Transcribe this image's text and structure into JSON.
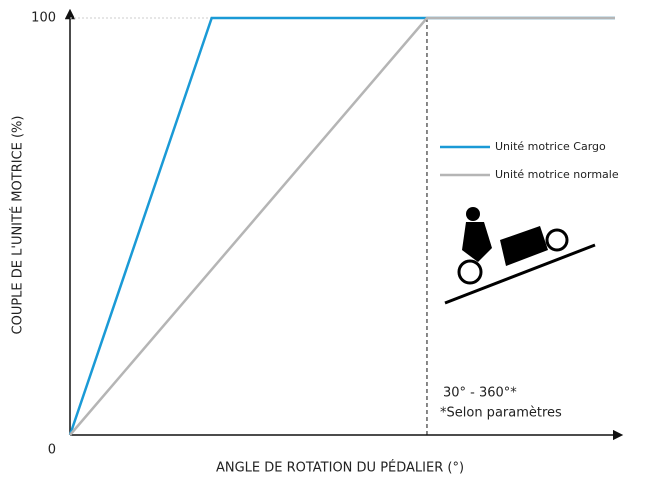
{
  "chart_data": {
    "type": "line",
    "y_label": "COUPLE DE L'UNITÉ MOTRICE (%)",
    "x_label": "ANGLE DE ROTATION DU PÉDALIER (°)",
    "xlim": [
      0,
      100
    ],
    "ylim": [
      0,
      100
    ],
    "yticks": [
      0,
      100
    ],
    "grid": true,
    "series": [
      {
        "name": "Unité motrice Cargo",
        "color": "#1a9ad6",
        "x": [
          0,
          26,
          100
        ],
        "values": [
          0,
          100,
          100
        ]
      },
      {
        "name": "Unité motrice normale",
        "color": "#b5b5b5",
        "x": [
          0,
          65.5,
          100
        ],
        "values": [
          0,
          100,
          100
        ]
      }
    ],
    "reference_line_x": 65.5,
    "annotations": [
      "30° - 360°*",
      "*Selon paramètres"
    ]
  }
}
